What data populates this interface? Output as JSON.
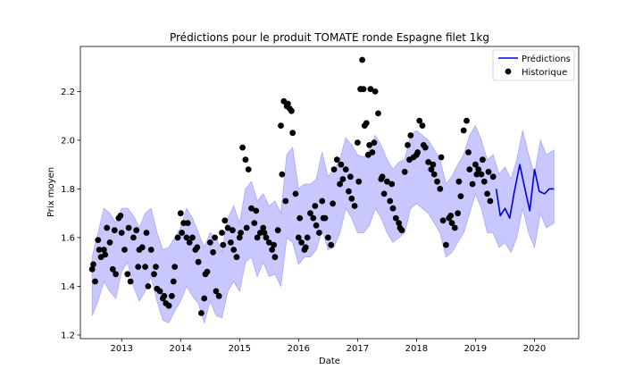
{
  "chart_data": {
    "type": "line",
    "title": "Prédictions pour le produit TOMATE ronde Espagne filet 1kg",
    "xlabel": "Date",
    "ylabel": "Prix moyen",
    "xlim": [
      2012.3,
      2020.75
    ],
    "ylim": [
      1.185,
      2.385
    ],
    "x_ticks": [
      2013,
      2014,
      2015,
      2016,
      2017,
      2018,
      2019,
      2020
    ],
    "x_tick_labels": [
      "2013",
      "2014",
      "2015",
      "2016",
      "2017",
      "2018",
      "2019",
      "2020"
    ],
    "y_ticks": [
      1.2,
      1.4,
      1.6,
      1.8,
      2.0,
      2.2
    ],
    "y_tick_labels": [
      "1.2",
      "1.4",
      "1.6",
      "1.8",
      "2.0",
      "2.2"
    ],
    "grid": false,
    "legend_position": "top-right",
    "colors": {
      "prediction": "#0000dd",
      "band": "#c8c8ff",
      "band_edge": "#a8a8f8",
      "history": "#000000"
    },
    "series": [
      {
        "name": "Prédictions",
        "kind": "line",
        "x": [
          2019.35,
          2019.42,
          2019.5,
          2019.58,
          2019.66,
          2019.75,
          2019.83,
          2019.92,
          2020.0,
          2020.08,
          2020.17,
          2020.25,
          2020.33
        ],
        "y": [
          1.8,
          1.69,
          1.72,
          1.68,
          1.79,
          1.9,
          1.81,
          1.71,
          1.88,
          1.79,
          1.78,
          1.8,
          1.8
        ]
      },
      {
        "name": "Historique",
        "kind": "scatter",
        "x": [
          2012.5,
          2012.55,
          2012.6,
          2012.65,
          2012.7,
          2012.75,
          2012.8,
          2012.85,
          2012.9,
          2012.95,
          2013.0,
          2013.05,
          2013.1,
          2013.15,
          2013.2,
          2013.25,
          2013.3,
          2013.35,
          2013.4,
          2013.45,
          2013.5,
          2013.55,
          2013.6,
          2013.65,
          2013.7,
          2013.75,
          2013.8,
          2013.85,
          2013.9,
          2013.95,
          2014.0,
          2014.05,
          2014.1,
          2014.15,
          2014.2,
          2014.25,
          2014.3,
          2014.35,
          2014.4,
          2014.45,
          2014.5,
          2014.55,
          2014.6,
          2014.65,
          2014.7,
          2014.75,
          2014.8,
          2014.85,
          2014.9,
          2014.95,
          2015.0,
          2015.05,
          2015.1,
          2015.15,
          2015.2,
          2015.25,
          2015.3,
          2015.35,
          2015.4,
          2015.45,
          2015.5,
          2015.55,
          2015.6,
          2015.65,
          2015.7,
          2015.75,
          2015.8,
          2015.85,
          2015.9,
          2015.95,
          2016.0,
          2016.05,
          2016.1,
          2016.15,
          2016.2,
          2016.25,
          2016.3,
          2016.35,
          2016.4,
          2016.45,
          2016.5,
          2016.55,
          2016.6,
          2016.65,
          2016.7,
          2016.75,
          2016.8,
          2016.85,
          2016.9,
          2016.95,
          2017.0,
          2017.05,
          2017.1,
          2017.15,
          2017.2,
          2017.25,
          2017.3,
          2017.35,
          2017.4,
          2017.45,
          2017.5,
          2017.55,
          2017.6,
          2017.65,
          2017.7,
          2017.75,
          2017.8,
          2017.85,
          2017.9,
          2017.95,
          2018.0,
          2018.05,
          2018.1,
          2018.15,
          2018.2,
          2018.25,
          2018.3,
          2018.35,
          2018.4,
          2018.45,
          2018.5,
          2018.55,
          2018.6,
          2018.65,
          2018.7,
          2018.75,
          2018.8,
          2018.85,
          2018.9,
          2018.95,
          2019.0,
          2019.05,
          2019.1,
          2019.15,
          2019.2,
          2019.25,
          2019.3,
          2012.52,
          2012.62,
          2012.72,
          2012.88,
          2012.98,
          2013.12,
          2013.28,
          2013.42,
          2013.58,
          2013.72,
          2013.88,
          2014.02,
          2014.12,
          2014.28,
          2014.42,
          2014.58,
          2014.72,
          2014.88,
          2015.02,
          2015.12,
          2015.28,
          2015.42,
          2015.58,
          2015.72,
          2015.78,
          2015.82,
          2015.88,
          2016.02,
          2016.12,
          2016.28,
          2016.42,
          2016.58,
          2016.72,
          2016.88,
          2017.02,
          2017.08,
          2017.12,
          2017.18,
          2017.28,
          2017.42,
          2017.58,
          2017.72,
          2017.88,
          2018.02,
          2018.12,
          2018.28,
          2018.42,
          2018.58,
          2018.72,
          2018.88,
          2019.02,
          2019.12,
          2019.22,
          2017.05,
          2017.22
        ],
        "y": [
          1.47,
          1.42,
          1.59,
          1.52,
          1.55,
          1.64,
          1.58,
          1.47,
          1.45,
          1.68,
          1.62,
          1.55,
          1.45,
          1.42,
          1.6,
          1.63,
          1.55,
          1.56,
          1.48,
          1.4,
          1.55,
          1.45,
          1.39,
          1.38,
          1.35,
          1.33,
          1.32,
          1.36,
          1.48,
          1.6,
          1.7,
          1.66,
          1.6,
          1.58,
          1.6,
          1.55,
          1.5,
          1.29,
          1.35,
          1.46,
          1.58,
          1.54,
          1.38,
          1.36,
          1.62,
          1.67,
          1.64,
          1.58,
          1.55,
          1.52,
          1.6,
          1.97,
          1.92,
          1.88,
          1.72,
          1.66,
          1.6,
          1.62,
          1.64,
          1.6,
          1.58,
          1.55,
          1.52,
          1.63,
          2.06,
          2.16,
          2.14,
          2.13,
          2.03,
          1.78,
          1.6,
          1.58,
          1.55,
          1.6,
          1.7,
          1.68,
          1.65,
          1.62,
          1.75,
          1.68,
          1.6,
          1.57,
          1.88,
          1.92,
          1.82,
          1.84,
          1.88,
          1.79,
          1.76,
          1.73,
          1.99,
          2.21,
          2.21,
          2.07,
          1.98,
          1.95,
          2.2,
          2.11,
          1.84,
          1.78,
          1.83,
          1.75,
          1.72,
          1.68,
          1.66,
          1.63,
          1.87,
          1.98,
          2.02,
          1.93,
          1.94,
          2.08,
          2.06,
          1.97,
          1.91,
          1.88,
          1.86,
          1.83,
          1.8,
          1.67,
          1.57,
          1.68,
          1.66,
          1.64,
          1.7,
          1.77,
          2.04,
          2.08,
          1.88,
          1.82,
          1.9,
          1.88,
          1.86,
          1.83,
          1.78,
          1.75,
          1.85,
          1.49,
          1.55,
          1.53,
          1.63,
          1.69,
          1.64,
          1.48,
          1.62,
          1.48,
          1.36,
          1.42,
          1.62,
          1.66,
          1.56,
          1.45,
          1.6,
          1.57,
          1.63,
          1.62,
          1.64,
          1.71,
          1.62,
          1.57,
          1.86,
          1.75,
          2.15,
          2.12,
          1.68,
          1.56,
          1.73,
          1.68,
          1.74,
          1.9,
          1.85,
          1.83,
          2.33,
          2.06,
          1.94,
          1.99,
          1.85,
          1.82,
          1.64,
          1.92,
          1.95,
          1.98,
          1.9,
          1.93,
          1.69,
          1.83,
          1.95,
          1.86,
          1.92,
          1.87,
          2.21,
          2.21
        ]
      }
    ],
    "band": {
      "name": "",
      "x": [
        2012.5,
        2012.6,
        2012.7,
        2012.8,
        2012.9,
        2013.0,
        2013.1,
        2013.2,
        2013.3,
        2013.4,
        2013.5,
        2013.6,
        2013.7,
        2013.8,
        2013.9,
        2014.0,
        2014.1,
        2014.2,
        2014.3,
        2014.4,
        2014.5,
        2014.6,
        2014.7,
        2014.8,
        2014.9,
        2015.0,
        2015.1,
        2015.2,
        2015.3,
        2015.4,
        2015.5,
        2015.6,
        2015.7,
        2015.8,
        2015.9,
        2016.0,
        2016.1,
        2016.2,
        2016.3,
        2016.4,
        2016.5,
        2016.6,
        2016.7,
        2016.8,
        2016.9,
        2017.0,
        2017.1,
        2017.2,
        2017.3,
        2017.4,
        2017.5,
        2017.6,
        2017.7,
        2017.8,
        2017.9,
        2018.0,
        2018.1,
        2018.2,
        2018.3,
        2018.4,
        2018.5,
        2018.6,
        2018.7,
        2018.8,
        2018.9,
        2019.0,
        2019.1,
        2019.2,
        2019.3,
        2019.4,
        2019.5,
        2019.6,
        2019.7,
        2019.8,
        2019.9,
        2020.0,
        2020.1,
        2020.2,
        2020.33
      ],
      "lower": [
        1.28,
        1.34,
        1.42,
        1.38,
        1.35,
        1.46,
        1.5,
        1.4,
        1.34,
        1.38,
        1.44,
        1.34,
        1.26,
        1.25,
        1.3,
        1.34,
        1.4,
        1.36,
        1.33,
        1.25,
        1.34,
        1.28,
        1.27,
        1.38,
        1.42,
        1.38,
        1.5,
        1.52,
        1.44,
        1.5,
        1.44,
        1.45,
        1.4,
        1.6,
        1.58,
        1.49,
        1.52,
        1.52,
        1.55,
        1.63,
        1.55,
        1.56,
        1.62,
        1.72,
        1.68,
        1.62,
        1.62,
        1.65,
        1.72,
        1.68,
        1.62,
        1.58,
        1.6,
        1.62,
        1.72,
        1.74,
        1.72,
        1.7,
        1.66,
        1.62,
        1.52,
        1.54,
        1.58,
        1.62,
        1.7,
        1.78,
        1.72,
        1.62,
        1.62,
        1.56,
        1.58,
        1.54,
        1.6,
        1.72,
        1.62,
        1.56,
        1.7,
        1.64,
        1.66
      ],
      "upper": [
        1.52,
        1.62,
        1.72,
        1.7,
        1.66,
        1.72,
        1.72,
        1.69,
        1.64,
        1.7,
        1.72,
        1.62,
        1.55,
        1.56,
        1.6,
        1.64,
        1.72,
        1.68,
        1.62,
        1.56,
        1.62,
        1.6,
        1.54,
        1.68,
        1.73,
        1.66,
        1.8,
        1.83,
        1.75,
        1.78,
        1.73,
        1.75,
        1.7,
        1.94,
        1.97,
        1.8,
        1.82,
        1.82,
        1.84,
        1.95,
        1.85,
        1.88,
        1.92,
        2.01,
        1.98,
        1.94,
        1.93,
        1.96,
        2.02,
        1.98,
        1.92,
        1.88,
        1.91,
        1.92,
        2.02,
        2.04,
        2.02,
        2.0,
        1.96,
        1.92,
        1.82,
        1.85,
        1.9,
        1.94,
        2.02,
        2.06,
        2.0,
        1.92,
        1.94,
        1.86,
        1.89,
        1.84,
        1.92,
        2.04,
        1.94,
        1.86,
        2.0,
        1.94,
        1.96
      ]
    }
  }
}
